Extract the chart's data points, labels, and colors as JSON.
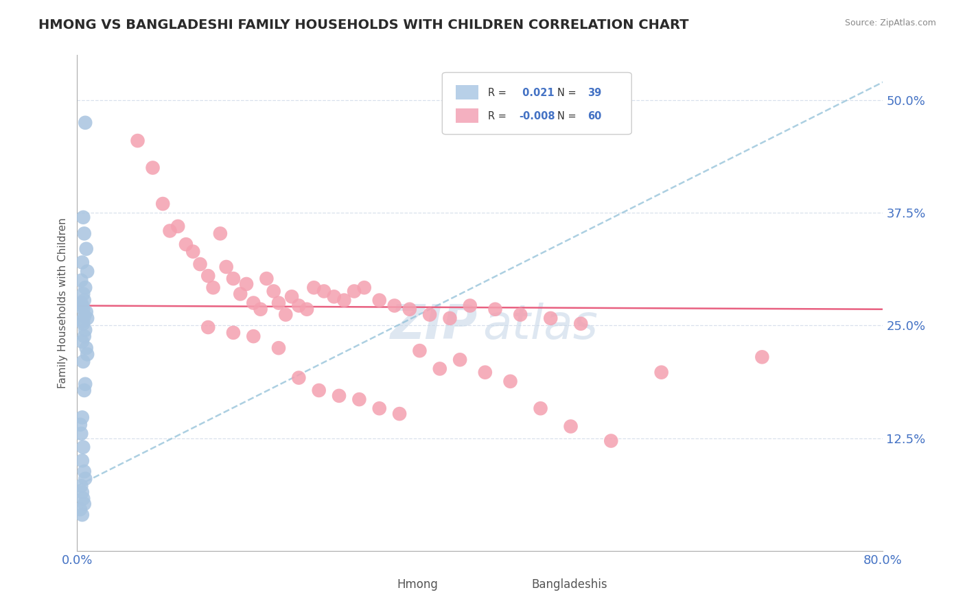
{
  "title": "HMONG VS BANGLADESHI FAMILY HOUSEHOLDS WITH CHILDREN CORRELATION CHART",
  "source": "Source: ZipAtlas.com",
  "ylabel": "Family Households with Children",
  "xlim": [
    0.0,
    0.8
  ],
  "ylim": [
    0.0,
    0.55
  ],
  "xtick_vals": [
    0.0,
    0.8
  ],
  "xtick_labels": [
    "0.0%",
    "80.0%"
  ],
  "ytick_vals": [
    0.125,
    0.25,
    0.375,
    0.5
  ],
  "ytick_labels": [
    "12.5%",
    "25.0%",
    "37.5%",
    "50.0%"
  ],
  "hmong_R": 0.021,
  "hmong_N": 39,
  "bangladeshi_R": -0.008,
  "bangladeshi_N": 60,
  "hmong_dot_color": "#a8c4e0",
  "bangladeshi_dot_color": "#f4a0b0",
  "hmong_trend_color": "#90c0d8",
  "bangladeshi_trend_color": "#e86080",
  "legend_color_hmong": "#b8d0e8",
  "legend_color_bangladeshi": "#f4b0c0",
  "r_value_color": "#4472c4",
  "grid_color": "#d8e0ec",
  "title_color": "#2a2a2a",
  "source_color": "#888888",
  "label_color": "#555555",
  "tick_color": "#4472c4",
  "watermark_color": "#c8d8e8",
  "hmong_x": [
    0.008,
    0.006,
    0.007,
    0.009,
    0.005,
    0.01,
    0.004,
    0.008,
    0.006,
    0.007,
    0.005,
    0.009,
    0.01,
    0.006,
    0.008,
    0.007,
    0.005,
    0.009,
    0.01,
    0.006,
    0.008,
    0.007,
    0.005,
    0.003,
    0.004,
    0.006,
    0.005,
    0.007,
    0.008,
    0.004,
    0.005,
    0.006,
    0.007,
    0.003,
    0.005,
    0.004,
    0.006,
    0.007,
    0.005
  ],
  "hmong_y": [
    0.475,
    0.37,
    0.352,
    0.335,
    0.32,
    0.31,
    0.3,
    0.292,
    0.285,
    0.278,
    0.272,
    0.265,
    0.258,
    0.252,
    0.245,
    0.238,
    0.232,
    0.225,
    0.218,
    0.21,
    0.185,
    0.178,
    0.148,
    0.14,
    0.13,
    0.115,
    0.1,
    0.088,
    0.08,
    0.072,
    0.065,
    0.058,
    0.052,
    0.046,
    0.04,
    0.275,
    0.268,
    0.26,
    0.255
  ],
  "bangladeshi_x": [
    0.06,
    0.075,
    0.085,
    0.092,
    0.1,
    0.108,
    0.115,
    0.122,
    0.13,
    0.135,
    0.142,
    0.148,
    0.155,
    0.162,
    0.168,
    0.175,
    0.182,
    0.188,
    0.195,
    0.2,
    0.207,
    0.213,
    0.22,
    0.228,
    0.235,
    0.245,
    0.255,
    0.265,
    0.275,
    0.285,
    0.3,
    0.315,
    0.33,
    0.35,
    0.37,
    0.39,
    0.415,
    0.44,
    0.47,
    0.5,
    0.13,
    0.155,
    0.175,
    0.2,
    0.22,
    0.24,
    0.26,
    0.28,
    0.3,
    0.32,
    0.34,
    0.36,
    0.38,
    0.405,
    0.43,
    0.46,
    0.49,
    0.53,
    0.58,
    0.68
  ],
  "bangladeshi_y": [
    0.455,
    0.425,
    0.385,
    0.355,
    0.36,
    0.34,
    0.332,
    0.318,
    0.305,
    0.292,
    0.352,
    0.315,
    0.302,
    0.285,
    0.296,
    0.275,
    0.268,
    0.302,
    0.288,
    0.275,
    0.262,
    0.282,
    0.272,
    0.268,
    0.292,
    0.288,
    0.282,
    0.278,
    0.288,
    0.292,
    0.278,
    0.272,
    0.268,
    0.262,
    0.258,
    0.272,
    0.268,
    0.262,
    0.258,
    0.252,
    0.248,
    0.242,
    0.238,
    0.225,
    0.192,
    0.178,
    0.172,
    0.168,
    0.158,
    0.152,
    0.222,
    0.202,
    0.212,
    0.198,
    0.188,
    0.158,
    0.138,
    0.122,
    0.198,
    0.215
  ],
  "hmong_trend_y0": 0.072,
  "hmong_trend_y1": 0.52,
  "bangladeshi_trend_y0": 0.272,
  "bangladeshi_trend_y1": 0.268
}
